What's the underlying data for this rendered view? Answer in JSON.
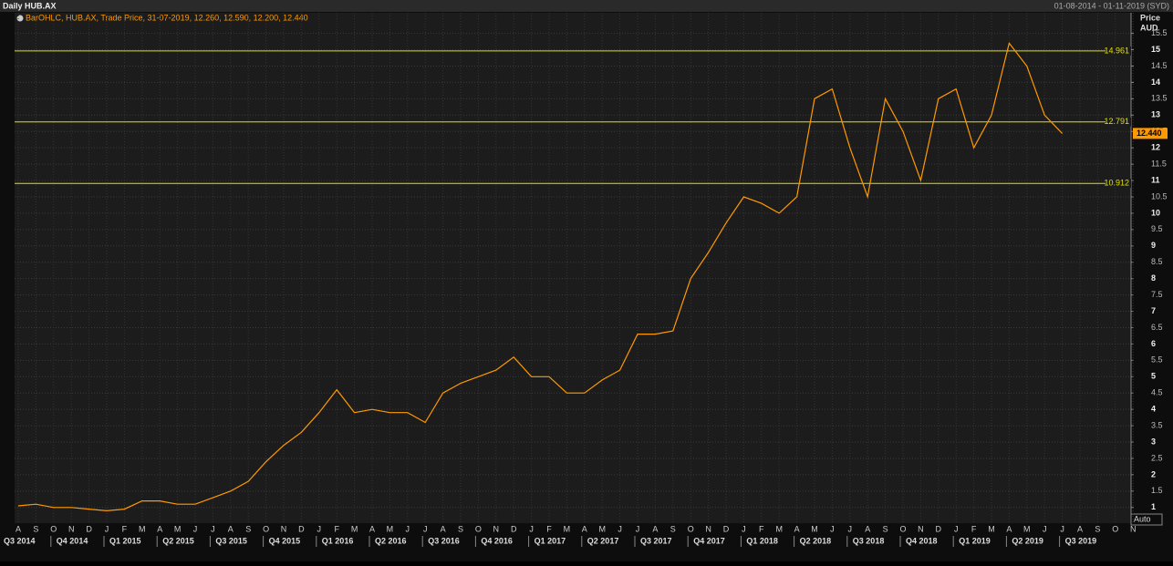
{
  "chart_data": {
    "type": "line",
    "title": "Daily HUB.AX",
    "date_range": "01-08-2014 - 01-11-2019 (SYD)",
    "legend_text": "BarOHLC, HUB.AX, Trade Price, 31-07-2019, 12.260, 12.590, 12.200, 12.440",
    "y_label": "Price",
    "y_unit": "AUD",
    "auto_label": "Auto",
    "categories": [
      "A",
      "S",
      "O",
      "N",
      "D",
      "J",
      "F",
      "M",
      "A",
      "M",
      "J",
      "J",
      "A",
      "S",
      "O",
      "N",
      "D",
      "J",
      "F",
      "M",
      "A",
      "M",
      "J",
      "J",
      "A",
      "S",
      "O",
      "N",
      "D",
      "J",
      "F",
      "M",
      "A",
      "M",
      "J",
      "J",
      "A",
      "S",
      "O",
      "N",
      "D",
      "J",
      "F",
      "M",
      "A",
      "M",
      "J",
      "J",
      "A",
      "S",
      "O",
      "N",
      "D",
      "J",
      "F",
      "M",
      "A",
      "M",
      "J",
      "J",
      "A",
      "S",
      "O",
      "N"
    ],
    "quarter_labels": [
      "Q3 2014",
      "Q4 2014",
      "Q1 2015",
      "Q2 2015",
      "Q3 2015",
      "Q4 2015",
      "Q1 2016",
      "Q2 2016",
      "Q3 2016",
      "Q4 2016",
      "Q1 2017",
      "Q2 2017",
      "Q3 2017",
      "Q4 2017",
      "Q1 2018",
      "Q2 2018",
      "Q3 2018",
      "Q4 2018",
      "Q1 2019",
      "Q2 2019",
      "Q3 2019"
    ],
    "series": [
      {
        "name": "HUB.AX",
        "color": "#ff9900",
        "values": [
          1.05,
          1.1,
          1.0,
          1.0,
          0.95,
          0.9,
          0.95,
          1.2,
          1.2,
          1.1,
          1.1,
          1.3,
          1.5,
          1.8,
          2.4,
          2.9,
          3.3,
          3.9,
          4.6,
          3.9,
          4.0,
          3.9,
          3.9,
          3.6,
          4.5,
          4.8,
          5.0,
          5.2,
          5.6,
          5.0,
          5.0,
          4.5,
          4.5,
          4.9,
          5.2,
          6.3,
          6.3,
          6.4,
          8.0,
          8.8,
          9.7,
          10.5,
          10.3,
          10.0,
          10.5,
          13.5,
          13.8,
          12.0,
          10.5,
          13.5,
          12.5,
          11.0,
          13.5,
          13.8,
          12.0,
          13.0,
          15.2,
          14.5,
          13.0,
          12.44,
          null,
          null,
          null,
          null
        ]
      }
    ],
    "last_price": {
      "value": 12.44,
      "label": "12.440"
    },
    "hlines": [
      14.961,
      12.791,
      10.912
    ],
    "hline_color": "#e0e000",
    "ylim": [
      0.52,
      16.13
    ],
    "yticks": [
      1,
      1.5,
      2,
      2.5,
      3,
      3.5,
      4,
      4.5,
      5,
      5.5,
      6,
      6.5,
      7,
      7.5,
      8,
      8.5,
      9,
      9.5,
      10,
      10.5,
      11,
      11.5,
      12,
      12.5,
      13,
      13.5,
      14,
      14.5,
      15,
      15.5
    ],
    "grid": true
  }
}
